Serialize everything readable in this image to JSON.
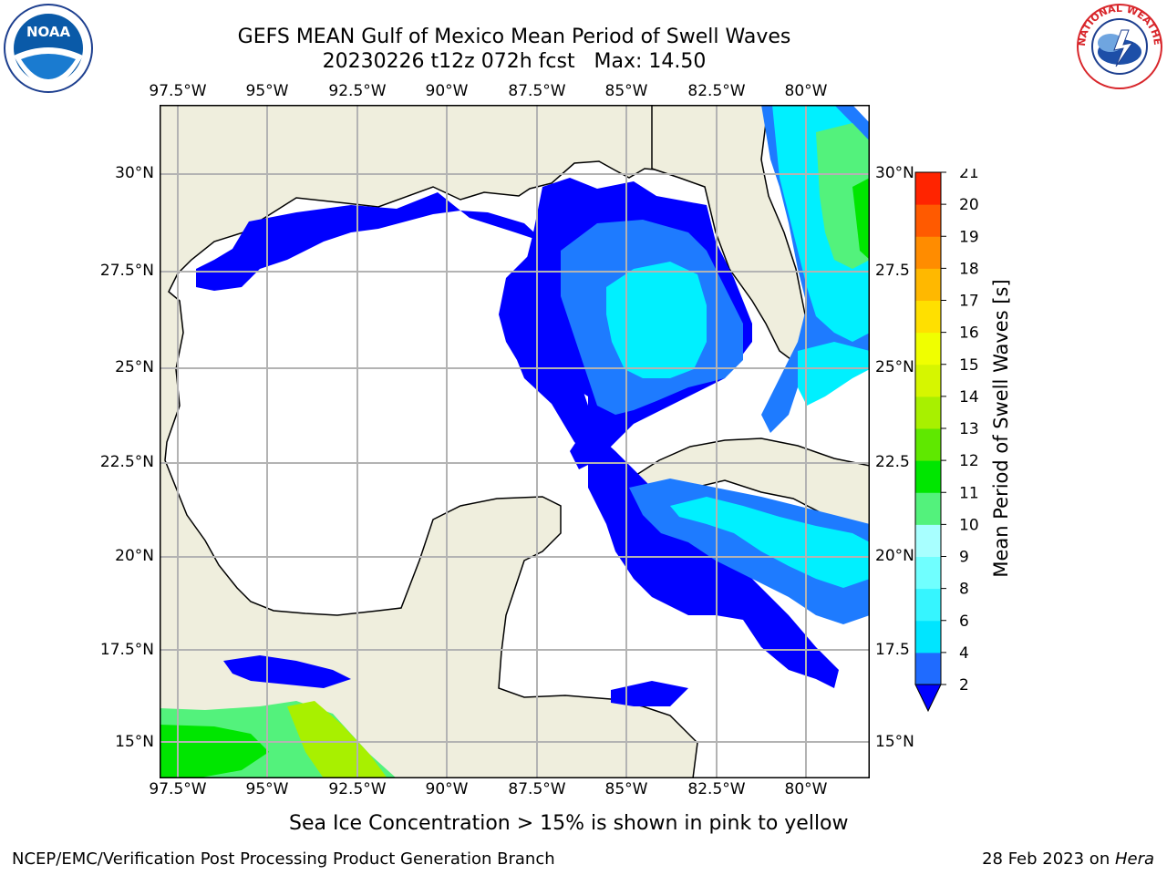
{
  "title": "GEFS MEAN Gulf of Mexico Mean Period of Swell Waves",
  "subtitle": "20230226 t12z 072h fcst   Max: 14.50",
  "longitude_labels": [
    "97.5°W",
    "95°W",
    "92.5°W",
    "90°W",
    "87.5°W",
    "85°W",
    "82.5°W",
    "80°W"
  ],
  "latitude_labels_left": [
    "30°N",
    "27.5°N",
    "25°N",
    "22.5°N",
    "20°N",
    "17.5°N",
    "15°N"
  ],
  "latitude_labels_right": [
    "30°N",
    "27.5",
    "25°N",
    "22.5",
    "20°N",
    "17.5",
    "15°N"
  ],
  "colorbar": {
    "label": "Mean Period of Swell Waves [s]",
    "ticks": [
      "2",
      "4",
      "6",
      "8",
      "9",
      "10",
      "11",
      "12",
      "13",
      "14",
      "15",
      "16",
      "17",
      "18",
      "19",
      "20",
      "21"
    ],
    "colors": [
      "#1f6bff",
      "#00e5ff",
      "#36f5ff",
      "#70ffff",
      "#a8ffff",
      "#53f27c",
      "#00e600",
      "#5fe800",
      "#a8f000",
      "#d6f600",
      "#f0ff00",
      "#ffe000",
      "#ffb800",
      "#ff8c00",
      "#ff5a00",
      "#ff2400",
      "#ff0000"
    ],
    "underflow_color": "#0000ff"
  },
  "note": "Sea Ice Concentration > 15% is shown in pink to yellow",
  "footer_left": "NCEP/EMC/Verification Post Processing Product Generation Branch",
  "footer_date": "28 Feb 2023 on ",
  "footer_host": "Hera",
  "logos": {
    "noaa_text": "NOAA",
    "nws_text": "NATIONAL WEATHER SERVICE"
  },
  "colors": {
    "land": "#efeedd",
    "ocean_low": "#ffffff",
    "swell_2": "#0000ff",
    "swell_4": "#1e7bff",
    "swell_6": "#00f0ff",
    "grid": "#b3b3b3"
  }
}
